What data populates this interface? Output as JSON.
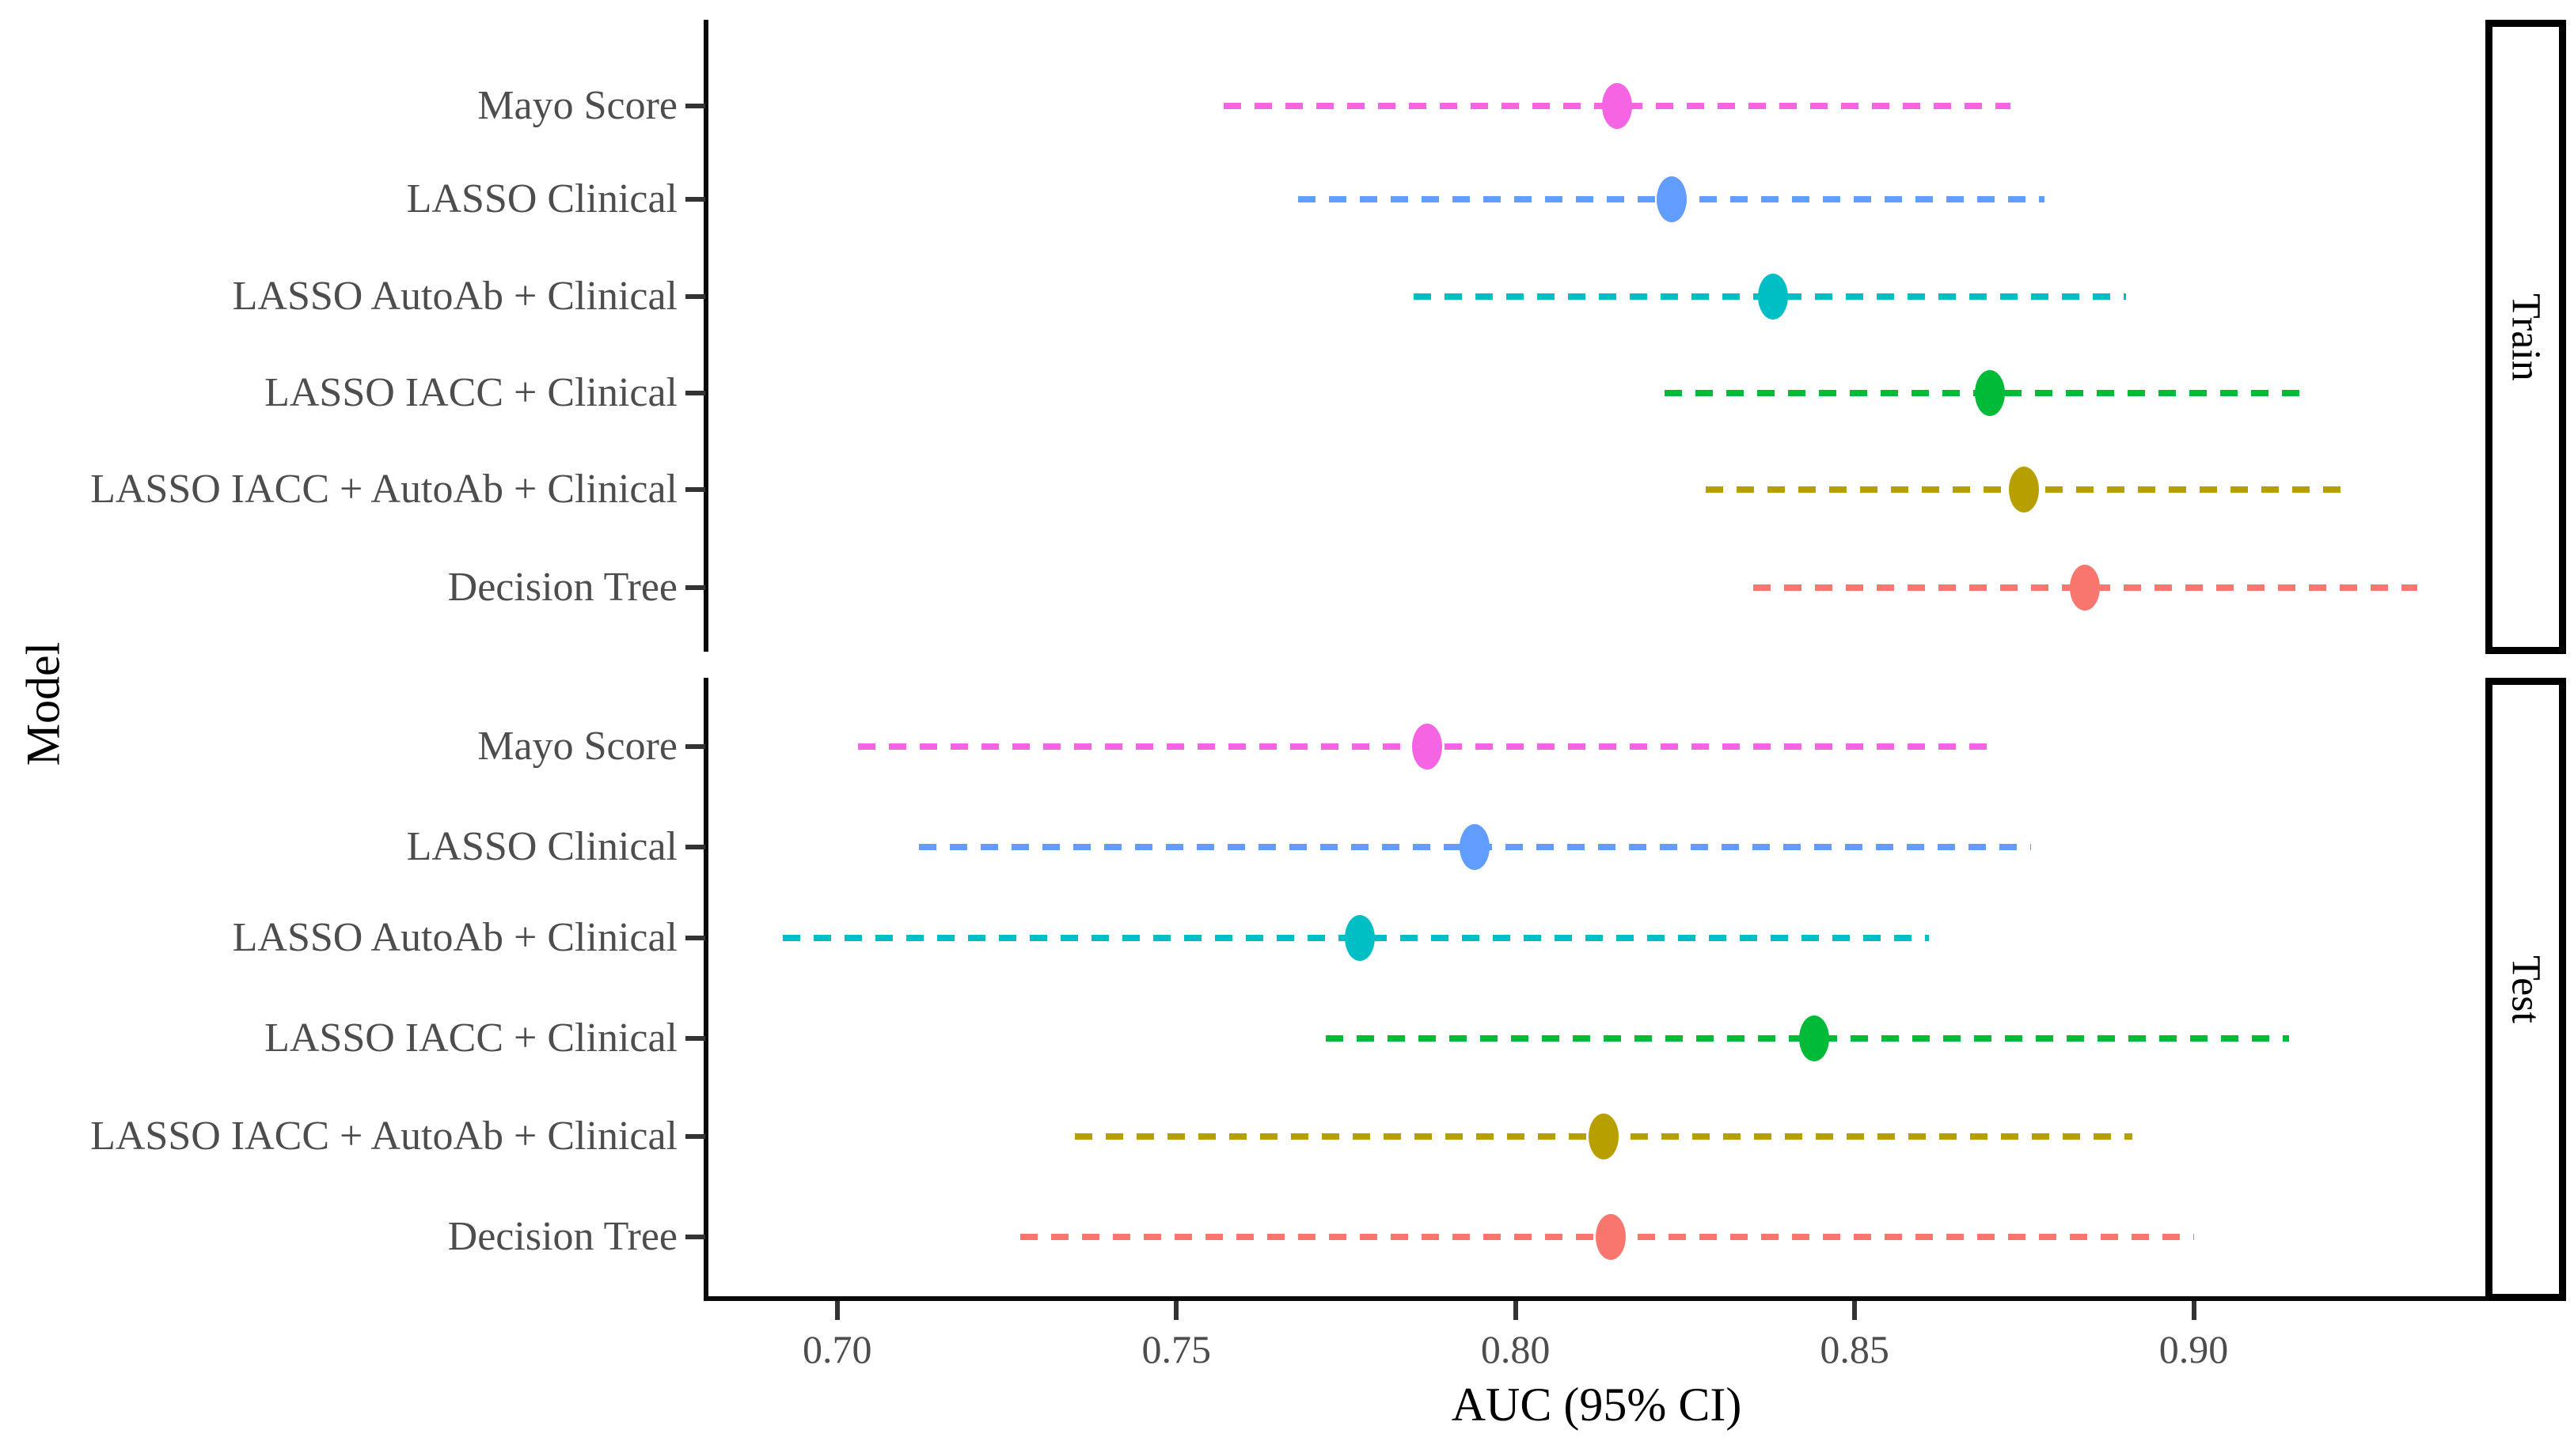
{
  "chart_data": {
    "type": "scatter",
    "subtype": "forest-pointrange",
    "title": "",
    "xlabel": "AUC (95% CI)",
    "ylabel": "Model",
    "xlim": [
      0.681,
      0.943
    ],
    "x_ticks": [
      0.7,
      0.75,
      0.8,
      0.85,
      0.9
    ],
    "x_tick_labels": [
      "0.70",
      "0.75",
      "0.80",
      "0.85",
      "0.90"
    ],
    "grid": "off",
    "legend": "none",
    "line_style": "dashed",
    "categories": [
      "Mayo Score",
      "LASSO Clinical",
      "LASSO AutoAb + Clinical",
      "LASSO IACC + Clinical",
      "LASSO IACC + AutoAb + Clinical",
      "Decision Tree"
    ],
    "facets": [
      {
        "label": "Train",
        "rows": [
          {
            "model": "Mayo Score",
            "auc": 0.815,
            "ci_low": 0.757,
            "ci_high": 0.873,
            "color": "#F564E3"
          },
          {
            "model": "LASSO Clinical",
            "auc": 0.823,
            "ci_low": 0.768,
            "ci_high": 0.878,
            "color": "#619CFF"
          },
          {
            "model": "LASSO AutoAb + Clinical",
            "auc": 0.838,
            "ci_low": 0.785,
            "ci_high": 0.89,
            "color": "#00BFC4"
          },
          {
            "model": "LASSO IACC + Clinical",
            "auc": 0.87,
            "ci_low": 0.822,
            "ci_high": 0.917,
            "color": "#00BA38"
          },
          {
            "model": "LASSO IACC + AutoAb + Clinical",
            "auc": 0.875,
            "ci_low": 0.828,
            "ci_high": 0.922,
            "color": "#B79F00"
          },
          {
            "model": "Decision Tree",
            "auc": 0.884,
            "ci_low": 0.835,
            "ci_high": 0.933,
            "color": "#F8766D"
          }
        ]
      },
      {
        "label": "Test",
        "rows": [
          {
            "model": "Mayo Score",
            "auc": 0.787,
            "ci_low": 0.703,
            "ci_high": 0.87,
            "color": "#F564E3"
          },
          {
            "model": "LASSO Clinical",
            "auc": 0.794,
            "ci_low": 0.712,
            "ci_high": 0.876,
            "color": "#619CFF"
          },
          {
            "model": "LASSO AutoAb + Clinical",
            "auc": 0.777,
            "ci_low": 0.692,
            "ci_high": 0.861,
            "color": "#00BFC4"
          },
          {
            "model": "LASSO IACC + Clinical",
            "auc": 0.844,
            "ci_low": 0.772,
            "ci_high": 0.914,
            "color": "#00BA38"
          },
          {
            "model": "LASSO IACC + AutoAb + Clinical",
            "auc": 0.813,
            "ci_low": 0.735,
            "ci_high": 0.891,
            "color": "#B79F00"
          },
          {
            "model": "Decision Tree",
            "auc": 0.814,
            "ci_low": 0.727,
            "ci_high": 0.9,
            "color": "#F8766D"
          }
        ]
      }
    ]
  }
}
